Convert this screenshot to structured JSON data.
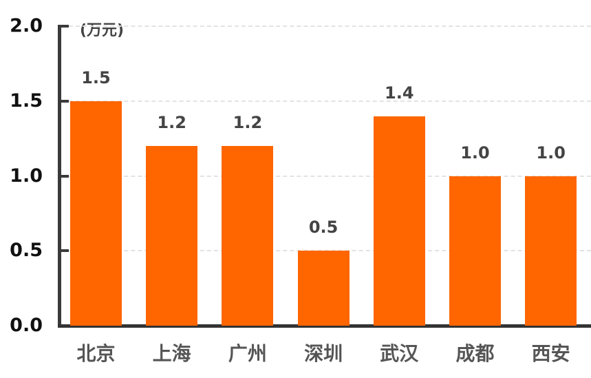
{
  "chart_data": {
    "type": "bar",
    "title": "",
    "unit_label": "(万元)",
    "xlabel": "",
    "ylabel": "万元",
    "ylim": [
      0,
      2.0
    ],
    "yticks": [
      "0.0",
      "0.5",
      "1.0",
      "1.5",
      "2.0"
    ],
    "grid": true,
    "bar_color": "#FF6600",
    "categories": [
      "北京",
      "上海",
      "广州",
      "深圳",
      "武汉",
      "成都",
      "西安"
    ],
    "values": [
      1.5,
      1.2,
      1.2,
      0.5,
      1.4,
      1.0,
      1.0
    ],
    "value_labels": [
      "1.5",
      "1.2",
      "1.2",
      "0.5",
      "1.4",
      "1.0",
      "1.0"
    ]
  }
}
